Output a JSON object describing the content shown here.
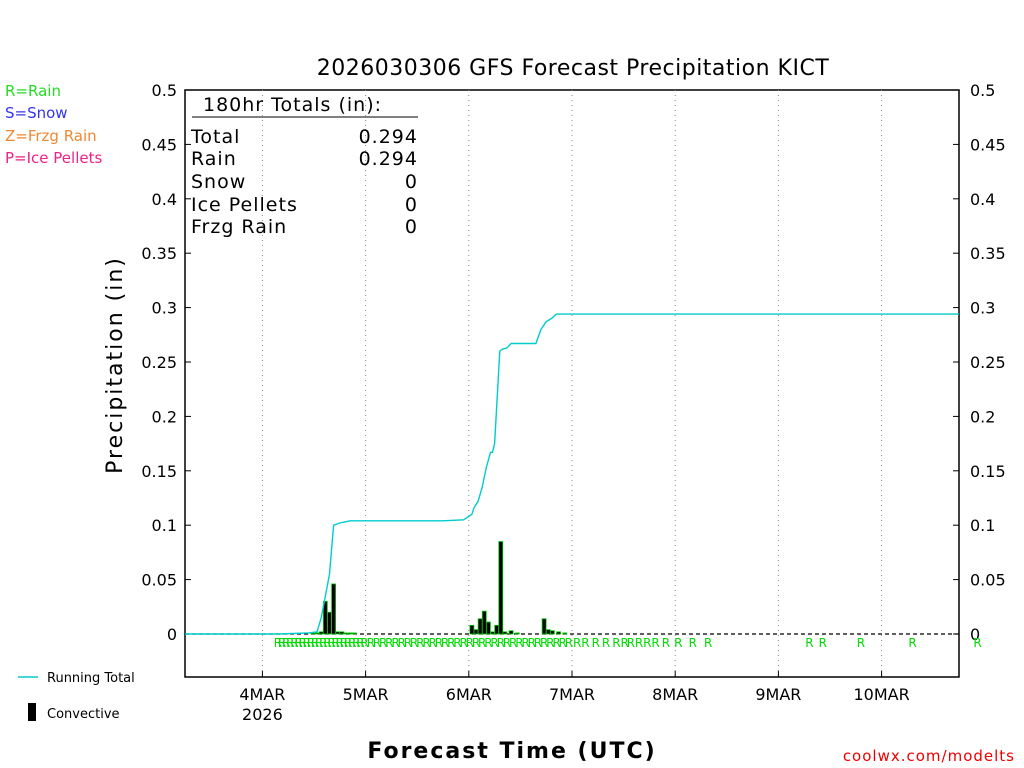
{
  "chart_data": {
    "type": "bar+line",
    "title": "2026030306 GFS Forecast Precipitation KICT",
    "xlabel": "Forecast Time (UTC)",
    "ylabel": "Precipitation (in)",
    "ylim": [
      -0.04,
      0.5
    ],
    "yticks": [
      "0",
      "0.05",
      "0.1",
      "0.15",
      "0.2",
      "0.25",
      "0.3",
      "0.35",
      "0.4",
      "0.45",
      "0.5"
    ],
    "y_tick_values": [
      0,
      0.05,
      0.1,
      0.15,
      0.2,
      0.25,
      0.3,
      0.35,
      0.4,
      0.45,
      0.5
    ],
    "xlim_days": [
      0,
      7.5
    ],
    "x_tick_labels": [
      "4MAR",
      "5MAR",
      "6MAR",
      "7MAR",
      "8MAR",
      "9MAR",
      "10MAR"
    ],
    "x_tick_days": [
      0.75,
      1.75,
      2.75,
      3.75,
      4.75,
      5.75,
      6.75
    ],
    "x_year_label": "2026",
    "running_total": {
      "name": "Running Total",
      "color": "#00cccc",
      "days": [
        0,
        0.9,
        1.2,
        1.28,
        1.32,
        1.36,
        1.4,
        1.44,
        1.5,
        1.55,
        1.6,
        1.7,
        2.5,
        2.7,
        2.78,
        2.8,
        2.84,
        2.88,
        2.92,
        2.96,
        2.98,
        3.0,
        3.05,
        3.08,
        3.12,
        3.14,
        3.16,
        3.2,
        3.3,
        3.4,
        3.45,
        3.5,
        3.55,
        3.6,
        3.7,
        7.5
      ],
      "values": [
        0,
        0,
        0.001,
        0.002,
        0.015,
        0.035,
        0.055,
        0.1,
        0.102,
        0.103,
        0.104,
        0.104,
        0.104,
        0.105,
        0.11,
        0.116,
        0.122,
        0.135,
        0.153,
        0.167,
        0.167,
        0.175,
        0.26,
        0.262,
        0.263,
        0.265,
        0.267,
        0.267,
        0.267,
        0.267,
        0.28,
        0.287,
        0.29,
        0.294,
        0.294,
        0.294
      ]
    },
    "convective_bars": {
      "name": "Convective",
      "days": [
        1.24,
        1.28,
        1.32,
        1.36,
        1.4,
        1.44,
        1.48,
        1.52,
        1.56,
        1.6,
        1.64,
        2.78,
        2.82,
        2.86,
        2.9,
        2.94,
        2.98,
        3.02,
        3.06,
        3.1,
        3.16,
        3.22,
        3.48,
        3.52,
        3.56,
        3.62,
        3.68
      ],
      "values": [
        0.001,
        0.001,
        0.002,
        0.03,
        0.02,
        0.046,
        0.002,
        0.002,
        0.001,
        0.001,
        0.001,
        0.008,
        0.004,
        0.014,
        0.021,
        0.011,
        0.002,
        0.008,
        0.085,
        0.002,
        0.003,
        0.001,
        0.014,
        0.004,
        0.003,
        0.002,
        0.001
      ]
    },
    "ptype_days": [
      0.9,
      0.94,
      0.98,
      1.02,
      1.06,
      1.1,
      1.14,
      1.18,
      1.22,
      1.26,
      1.3,
      1.34,
      1.38,
      1.42,
      1.46,
      1.5,
      1.54,
      1.58,
      1.62,
      1.66,
      1.7,
      1.74,
      1.8,
      1.86,
      1.92,
      1.98,
      2.04,
      2.1,
      2.16,
      2.22,
      2.28,
      2.34,
      2.4,
      2.46,
      2.52,
      2.58,
      2.64,
      2.7,
      2.76,
      2.82,
      2.88,
      2.94,
      3.0,
      3.06,
      3.12,
      3.18,
      3.24,
      3.3,
      3.36,
      3.42,
      3.48,
      3.54,
      3.6,
      3.66,
      3.72,
      3.8,
      3.88,
      3.98,
      4.08,
      4.18,
      4.26,
      4.32,
      4.4,
      4.48,
      4.56,
      4.66,
      4.78,
      4.92,
      5.07,
      6.05,
      6.18,
      6.55,
      7.05,
      7.68
    ],
    "ptype_label": "R"
  },
  "legend": {
    "rain": "R=Rain",
    "snow": "S=Snow",
    "frzg": "Z=Frzg Rain",
    "ice": "P=Ice Pellets",
    "running_total": "Running Total",
    "convective": "Convective"
  },
  "colors": {
    "rain": "#22dd22",
    "snow": "#3333ee",
    "frzg": "#ee8833",
    "ice": "#ee2288",
    "running_total": "#00cccc",
    "bar_fill": "#000000",
    "bar_edge": "#00cc00",
    "credit": "#ee0000"
  },
  "totals": {
    "header": "180hr Totals (in):",
    "rows": [
      {
        "label": "Total",
        "value": "0.294"
      },
      {
        "label": "Rain",
        "value": "0.294"
      },
      {
        "label": "Snow",
        "value": "0"
      },
      {
        "label": "Ice Pellets",
        "value": "0"
      },
      {
        "label": "Frzg Rain",
        "value": "0"
      }
    ]
  },
  "credit": "coolwx.com/modelts"
}
